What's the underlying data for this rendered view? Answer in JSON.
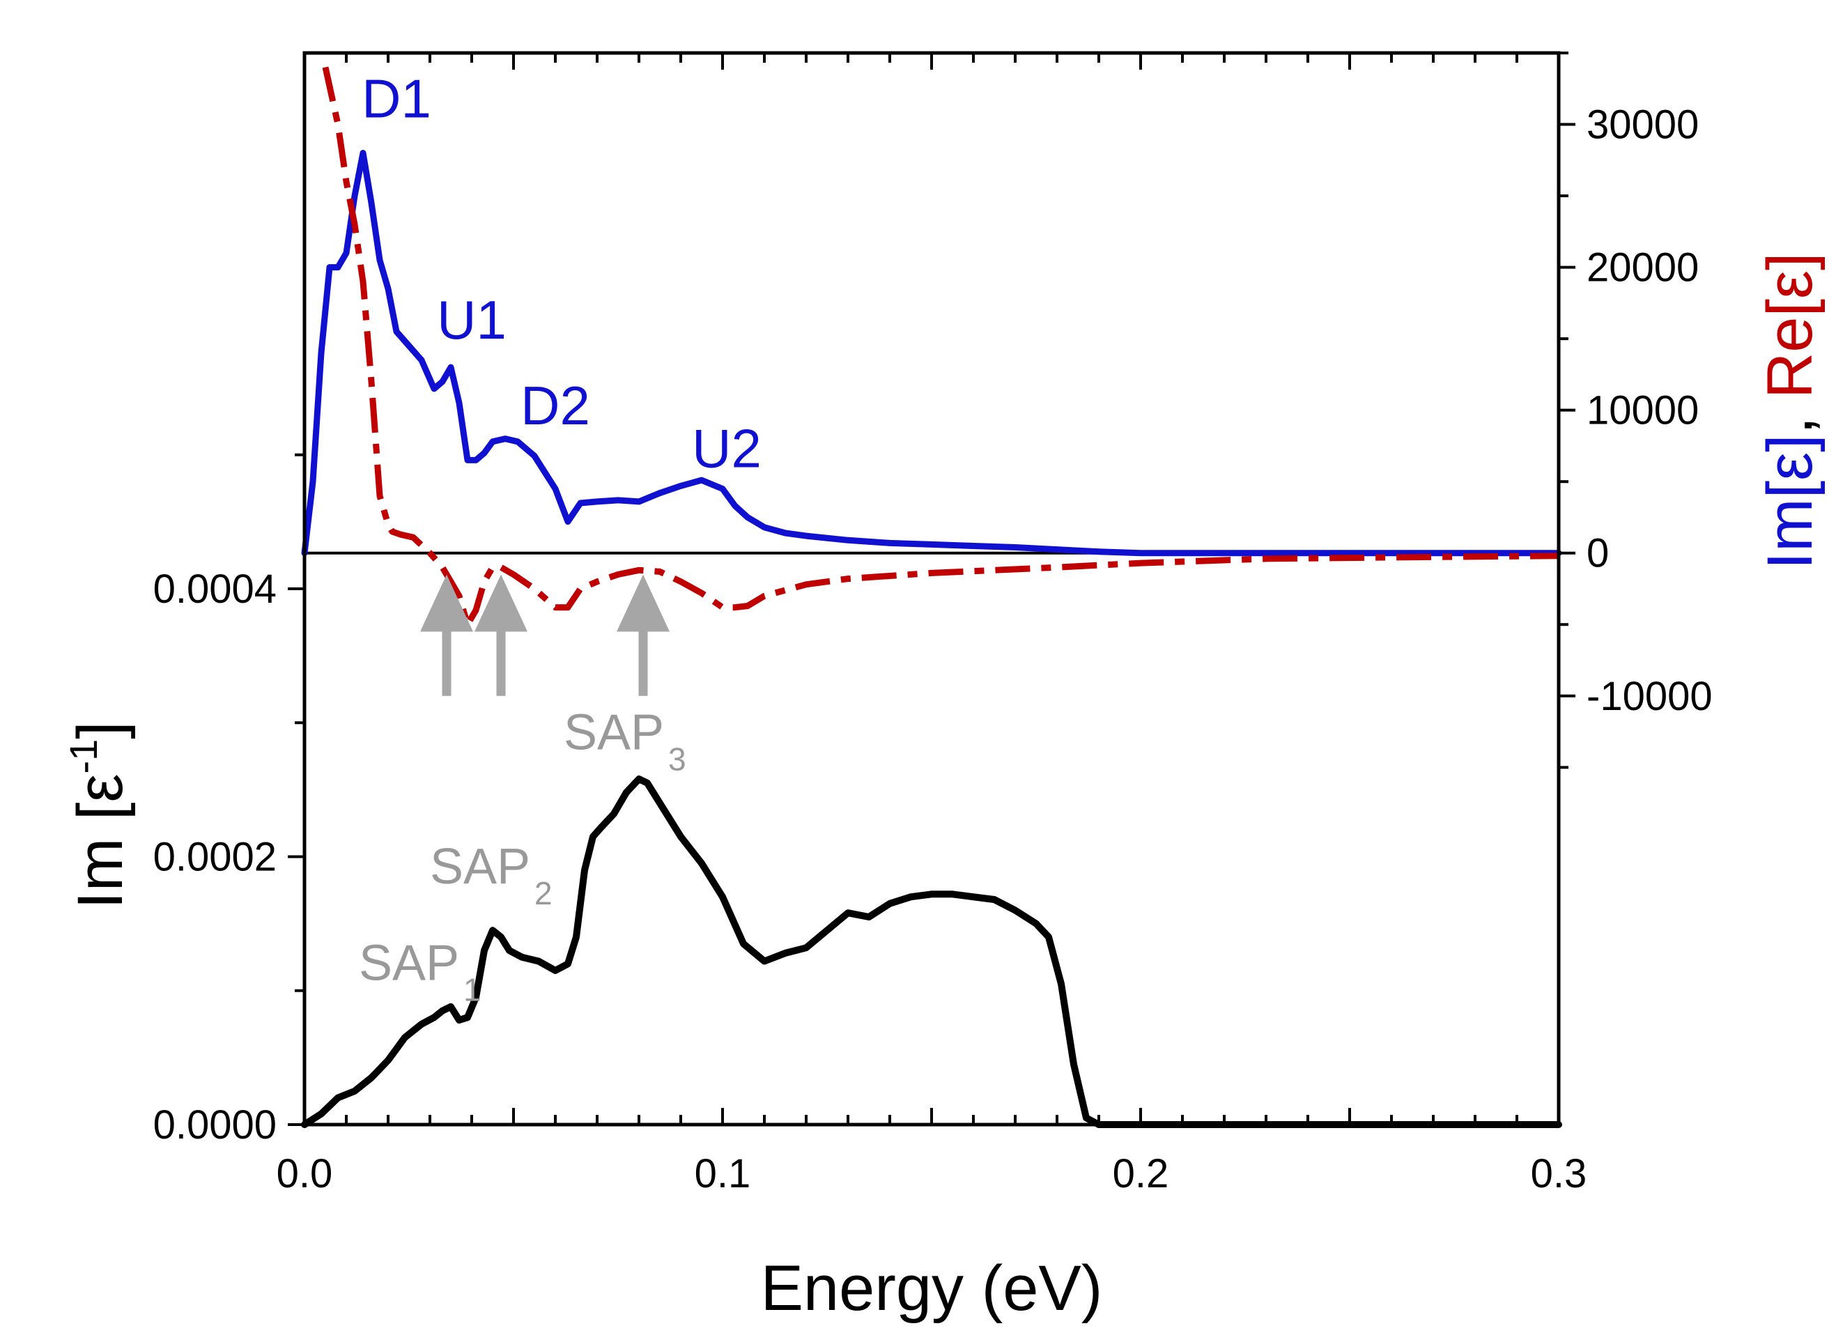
{
  "chart_data": {
    "type": "line",
    "x_axis": {
      "label": "Energy (eV)",
      "range": [
        0,
        0.3
      ],
      "ticks": [
        0.0,
        0.1,
        0.2,
        0.3
      ],
      "tick_labels": [
        "0.0",
        "0.1",
        "0.2",
        "0.3"
      ]
    },
    "left_axis": {
      "label": "Im [ε",
      "label_superscript": "-1",
      "label_close": "]",
      "range": [
        0,
        0.0008
      ],
      "ticks": [
        0,
        0.0002,
        0.0004
      ],
      "tick_labels": [
        "0.0000",
        "0.0002",
        "0.0004"
      ]
    },
    "right_axis": {
      "label_im": "Im[ε]",
      "label_sep": ", ",
      "label_re": "Re[ε]",
      "range": [
        -40000,
        35000
      ],
      "ticks": [
        -10000,
        0,
        10000,
        20000,
        30000
      ],
      "tick_labels": [
        "-10000",
        "0",
        "10000",
        "20000",
        "30000"
      ]
    },
    "colors": {
      "im_eps": "#1010d0",
      "re_eps": "#c00000",
      "loss": "#000000",
      "sap": "#999999",
      "arrow": "#a6a6a6"
    },
    "series": [
      {
        "name": "Im[ε]",
        "axis": "right",
        "style": "solid",
        "x": [
          0.0,
          0.002,
          0.004,
          0.006,
          0.008,
          0.01,
          0.012,
          0.014,
          0.016,
          0.018,
          0.02,
          0.022,
          0.025,
          0.028,
          0.031,
          0.033,
          0.035,
          0.037,
          0.039,
          0.041,
          0.043,
          0.045,
          0.048,
          0.051,
          0.055,
          0.06,
          0.063,
          0.066,
          0.07,
          0.075,
          0.08,
          0.085,
          0.09,
          0.095,
          0.1,
          0.103,
          0.106,
          0.11,
          0.115,
          0.12,
          0.13,
          0.14,
          0.15,
          0.16,
          0.17,
          0.18,
          0.19,
          0.2,
          0.25,
          0.3
        ],
        "values": [
          0,
          5000,
          14000,
          20000,
          20000,
          21000,
          25000,
          28000,
          24500,
          20500,
          18500,
          15500,
          14500,
          13500,
          11500,
          12000,
          13000,
          10500,
          6500,
          6500,
          7000,
          7800,
          8000,
          7800,
          6800,
          4500,
          2200,
          3500,
          3600,
          3700,
          3600,
          4200,
          4700,
          5100,
          4500,
          3300,
          2500,
          1800,
          1400,
          1200,
          900,
          700,
          600,
          500,
          400,
          250,
          100,
          0,
          0,
          0
        ]
      },
      {
        "name": "Re[ε]",
        "axis": "right",
        "style": "dash-dot",
        "x": [
          0.005,
          0.008,
          0.01,
          0.012,
          0.014,
          0.016,
          0.018,
          0.02,
          0.021,
          0.023,
          0.026,
          0.03,
          0.033,
          0.035,
          0.037,
          0.039,
          0.041,
          0.043,
          0.045,
          0.047,
          0.05,
          0.055,
          0.06,
          0.063,
          0.066,
          0.07,
          0.075,
          0.08,
          0.085,
          0.09,
          0.095,
          0.1,
          0.103,
          0.106,
          0.11,
          0.12,
          0.13,
          0.15,
          0.18,
          0.2,
          0.23,
          0.26,
          0.3
        ],
        "values": [
          34000,
          30000,
          26000,
          23000,
          19000,
          12000,
          4000,
          2000,
          1500,
          1300,
          1100,
          0,
          -1000,
          -2000,
          -3000,
          -5000,
          -4000,
          -2000,
          -1000,
          -1000,
          -1500,
          -2500,
          -3800,
          -3800,
          -2500,
          -2000,
          -1500,
          -1200,
          -1300,
          -2000,
          -2800,
          -3800,
          -3800,
          -3700,
          -3000,
          -2200,
          -1800,
          -1400,
          -1000,
          -700,
          -400,
          -300,
          -200
        ]
      },
      {
        "name": "Im [ε-1]",
        "axis": "left",
        "style": "solid",
        "x": [
          0.0,
          0.004,
          0.008,
          0.012,
          0.016,
          0.02,
          0.024,
          0.028,
          0.031,
          0.033,
          0.035,
          0.037,
          0.039,
          0.041,
          0.043,
          0.045,
          0.047,
          0.049,
          0.052,
          0.056,
          0.06,
          0.063,
          0.065,
          0.067,
          0.069,
          0.071,
          0.074,
          0.077,
          0.08,
          0.082,
          0.085,
          0.09,
          0.095,
          0.1,
          0.105,
          0.11,
          0.115,
          0.12,
          0.125,
          0.13,
          0.135,
          0.14,
          0.145,
          0.15,
          0.155,
          0.16,
          0.165,
          0.17,
          0.175,
          0.178,
          0.181,
          0.184,
          0.187,
          0.19,
          0.2,
          0.25,
          0.3
        ],
        "values": [
          0.0,
          8e-06,
          2e-05,
          2.5e-05,
          3.5e-05,
          4.8e-05,
          6.5e-05,
          7.5e-05,
          8e-05,
          8.5e-05,
          8.8e-05,
          7.8e-05,
          8e-05,
          9.5e-05,
          0.00013,
          0.000145,
          0.00014,
          0.00013,
          0.000125,
          0.000122,
          0.000115,
          0.00012,
          0.00014,
          0.00019,
          0.000215,
          0.000222,
          0.000232,
          0.000248,
          0.000258,
          0.000255,
          0.00024,
          0.000215,
          0.000195,
          0.00017,
          0.000135,
          0.000122,
          0.000128,
          0.000132,
          0.000145,
          0.000158,
          0.000155,
          0.000165,
          0.00017,
          0.000172,
          0.000172,
          0.00017,
          0.000168,
          0.00016,
          0.00015,
          0.00014,
          0.000105,
          4.5e-05,
          5e-06,
          0.0,
          0.0,
          0.0,
          0.0
        ]
      }
    ],
    "annotations": [
      {
        "text": "D1",
        "x": 0.022,
        "value": 30500,
        "axis": "right",
        "color": "im_eps"
      },
      {
        "text": "U1",
        "x": 0.04,
        "value": 15000,
        "axis": "right",
        "color": "im_eps"
      },
      {
        "text": "D2",
        "x": 0.06,
        "value": 9000,
        "axis": "right",
        "color": "im_eps"
      },
      {
        "text": "U2",
        "x": 0.101,
        "value": 6000,
        "axis": "right",
        "color": "im_eps"
      }
    ],
    "sap_labels": [
      {
        "base": "SAP",
        "sub": "1",
        "x": 0.025,
        "value": 0.000108
      },
      {
        "base": "SAP",
        "sub": "2",
        "x": 0.042,
        "value": 0.00018
      },
      {
        "base": "SAP",
        "sub": "3",
        "x": 0.074,
        "value": 0.00028
      }
    ],
    "arrows": [
      {
        "x": 0.034,
        "from_value": -10000,
        "to_value": -1500,
        "axis": "right"
      },
      {
        "x": 0.047,
        "from_value": -10000,
        "to_value": -1500,
        "axis": "right"
      },
      {
        "x": 0.081,
        "from_value": -10000,
        "to_value": -1500,
        "axis": "right"
      }
    ]
  }
}
